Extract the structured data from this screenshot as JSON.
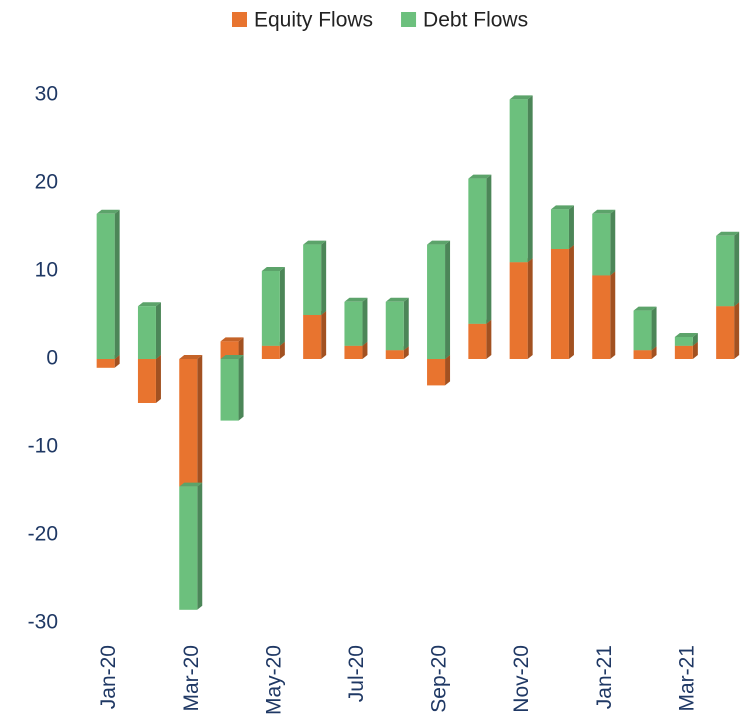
{
  "chart_data": {
    "type": "bar",
    "stacked": true,
    "categories": [
      "Jan-20",
      null,
      "Mar-20",
      null,
      "May-20",
      null,
      "Jul-20",
      null,
      "Sep-20",
      null,
      "Nov-20",
      null,
      "Jan-21",
      null,
      "Mar-21",
      null
    ],
    "series": [
      {
        "name": "Equity Flows",
        "color": "#e8742f",
        "values": [
          -1,
          -5,
          -14.5,
          2,
          1.5,
          5,
          1.5,
          1,
          -3,
          4,
          11,
          12.5,
          9.5,
          1,
          1.5,
          6
        ]
      },
      {
        "name": "Debt Flows",
        "color": "#6cc07d",
        "values": [
          16.5,
          6,
          -14,
          -7,
          8.5,
          8,
          5,
          5.5,
          13,
          16.5,
          18.5,
          4.5,
          7,
          4.5,
          1,
          8
        ]
      }
    ],
    "ylim": [
      -30,
      30
    ],
    "yticks": [
      -30,
      -20,
      -10,
      0,
      10,
      20,
      30
    ],
    "grid": false,
    "legend": "top"
  }
}
